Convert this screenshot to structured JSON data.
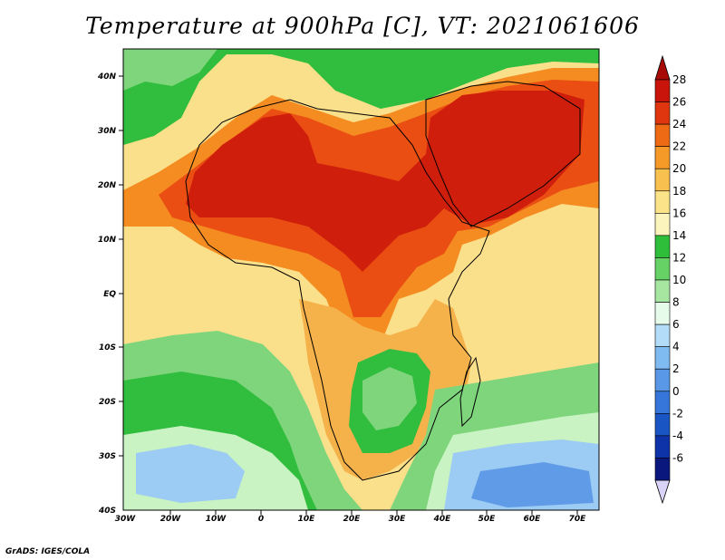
{
  "title": "Temperature at 900hPa [C], VT: 2021061606",
  "footer": "GrADS: IGES/COLA",
  "lat_ticks": [
    "40N",
    "30N",
    "20N",
    "10N",
    "EQ",
    "10S",
    "20S",
    "30S",
    "40S"
  ],
  "lon_ticks": [
    "30W",
    "20W",
    "10W",
    "0",
    "10E",
    "20E",
    "30E",
    "40E",
    "50E",
    "60E",
    "70E"
  ],
  "colorbar": {
    "labels": [
      "28",
      "26",
      "24",
      "22",
      "20",
      "18",
      "16",
      "14",
      "12",
      "10",
      "8",
      "6",
      "4",
      "2",
      "0",
      "-2",
      "-4",
      "-6"
    ],
    "colors": [
      "#c8140a",
      "#e0360f",
      "#ee6a14",
      "#f59a28",
      "#f8c04e",
      "#fbe38a",
      "#fbf5bd",
      "#2fbe3a",
      "#66d266",
      "#a6e6a1",
      "#e6fbea",
      "#b3dcf8",
      "#7fbaf0",
      "#5898e6",
      "#3675d9",
      "#1a55c4",
      "#0e33a8",
      "#0a177c"
    ],
    "under_color": "#d9d4f7",
    "over_color": "#a80a05"
  },
  "field_colors": {
    "hot": "#cf1e0b",
    "very_warm": "#ea4e12",
    "warm": "#f48c22",
    "mild": "#f6b24a",
    "pale": "#fbe08c",
    "light_green": "#7fd57c",
    "green": "#31bd3d",
    "mint": "#c9f3c3",
    "light_blue": "#9ccbf3",
    "blue": "#5f9be6"
  }
}
